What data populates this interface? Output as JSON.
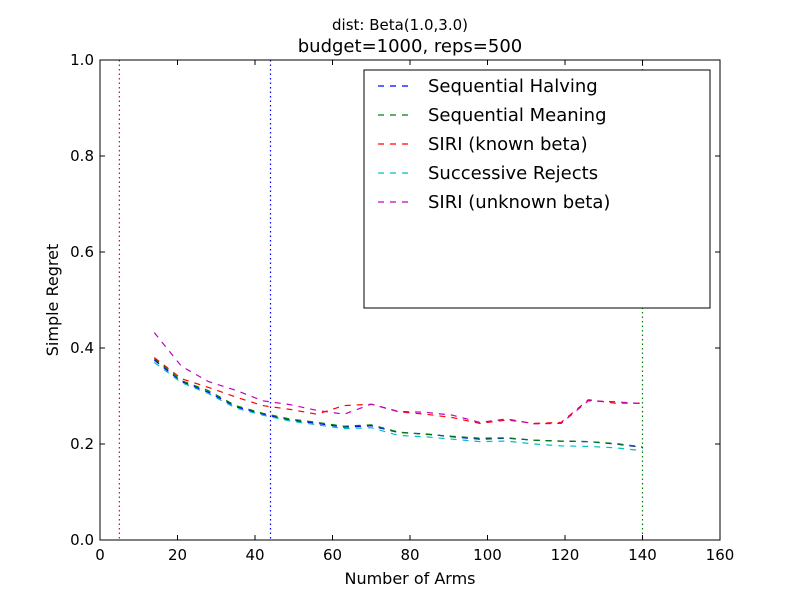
{
  "chart_data": {
    "type": "line",
    "suptitle": "dist: Beta(1.0,3.0)",
    "title": "budget=1000, reps=500",
    "xlabel": "Number of Arms",
    "ylabel": "Simple Regret",
    "xlim": [
      0,
      160
    ],
    "ylim": [
      0.0,
      1.0
    ],
    "xticks": [
      0,
      20,
      40,
      60,
      80,
      100,
      120,
      140,
      160
    ],
    "xtick_labels": [
      "0",
      "20",
      "40",
      "60",
      "80",
      "100",
      "120",
      "140",
      "160"
    ],
    "yticks": [
      0.0,
      0.2,
      0.4,
      0.6,
      0.8,
      1.0
    ],
    "ytick_labels": [
      "0.0",
      "0.2",
      "0.4",
      "0.6",
      "0.8",
      "1.0"
    ],
    "grid": false,
    "legend_position": "top-right",
    "vlines": [
      {
        "x": 5,
        "color": "#ff0000"
      },
      {
        "x": 44,
        "color": "#0000ff"
      },
      {
        "x": 140,
        "color": "#008000"
      }
    ],
    "x": [
      14,
      21,
      28,
      35,
      42,
      49,
      56,
      63,
      70,
      77,
      84,
      91,
      98,
      105,
      112,
      119,
      126,
      133,
      140
    ],
    "series": [
      {
        "name": "Sequential Halving",
        "color": "#0000ff",
        "values": [
          0.375,
          0.33,
          0.308,
          0.278,
          0.262,
          0.25,
          0.243,
          0.235,
          0.238,
          0.224,
          0.221,
          0.215,
          0.21,
          0.212,
          0.208,
          0.206,
          0.205,
          0.2,
          0.193
        ]
      },
      {
        "name": "Sequential Meaning",
        "color": "#008000",
        "values": [
          0.378,
          0.332,
          0.311,
          0.28,
          0.264,
          0.252,
          0.245,
          0.237,
          0.24,
          0.225,
          0.22,
          0.216,
          0.212,
          0.213,
          0.208,
          0.206,
          0.205,
          0.201,
          0.194
        ]
      },
      {
        "name": "SIRI (known beta)",
        "color": "#ff0000",
        "values": [
          0.38,
          0.336,
          0.318,
          0.298,
          0.28,
          0.272,
          0.262,
          0.28,
          0.283,
          0.267,
          0.262,
          0.255,
          0.243,
          0.25,
          0.243,
          0.245,
          0.292,
          0.285,
          0.285
        ]
      },
      {
        "name": "Successive Rejects",
        "color": "#00bfbf",
        "values": [
          0.37,
          0.328,
          0.305,
          0.275,
          0.26,
          0.248,
          0.24,
          0.232,
          0.234,
          0.218,
          0.215,
          0.21,
          0.205,
          0.206,
          0.2,
          0.196,
          0.195,
          0.192,
          0.186
        ]
      },
      {
        "name": "SIRI (unknown beta)",
        "color": "#bf00bf",
        "values": [
          0.432,
          0.362,
          0.33,
          0.312,
          0.29,
          0.282,
          0.27,
          0.262,
          0.283,
          0.268,
          0.266,
          0.26,
          0.245,
          0.252,
          0.242,
          0.243,
          0.29,
          0.288,
          0.284
        ]
      }
    ]
  }
}
